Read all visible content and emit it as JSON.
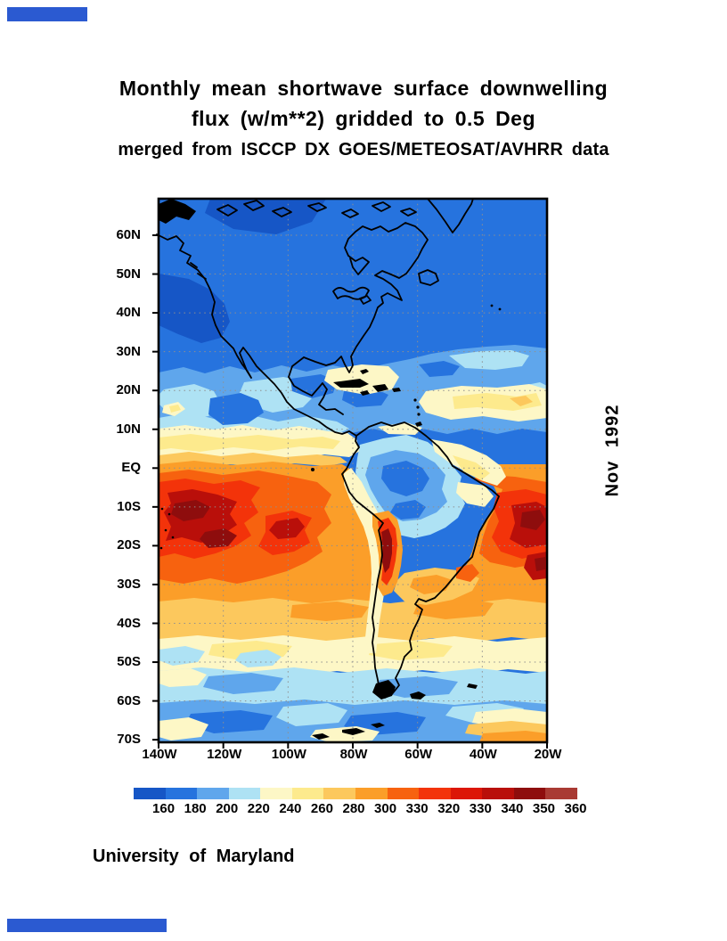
{
  "title": {
    "line1": "Monthly mean shortwave surface downwelling",
    "line2": "flux (w/m**2) gridded to 0.5 Deg",
    "line3": "merged from ISCCP DX GOES/METEOSAT/AVHRR data"
  },
  "side_label": "Nov 1992",
  "credit": "University of Maryland",
  "decor": {
    "bar_color": "#2b5ad1"
  },
  "map": {
    "lat_ticks": [
      "60N",
      "50N",
      "40N",
      "30N",
      "20N",
      "10N",
      "EQ",
      "10S",
      "20S",
      "30S",
      "40S",
      "50S",
      "60S",
      "70S"
    ],
    "lon_ticks": [
      "140W",
      "120W",
      "100W",
      "80W",
      "60W",
      "40W",
      "20W"
    ],
    "grid_color": "#8f8f8f",
    "coast_color": "#000000"
  },
  "colorbar": {
    "labels": [
      "160",
      "180",
      "200",
      "220",
      "240",
      "260",
      "280",
      "300",
      "330",
      "320",
      "330",
      "340",
      "350",
      "360"
    ],
    "colors": [
      "#1656c6",
      "#2673de",
      "#5fa6ec",
      "#aee2f4",
      "#fdf7c6",
      "#fdea8d",
      "#fcc85d",
      "#fb9e29",
      "#f7620f",
      "#f3330a",
      "#dc1607",
      "#b90f0a",
      "#8e0d0d",
      "#a93a33"
    ]
  },
  "chart_data": {
    "type": "heatmap",
    "title": "Monthly mean shortwave surface downwelling flux (w/m**2) gridded to 0.5 Deg",
    "subtitle": "merged from ISCCP DX GOES/METEOSAT/AVHRR data",
    "date": "Nov 1992",
    "units": "w/m**2",
    "projection": "lat-lon grid, Americas / eastern Pacific / western Atlantic",
    "x_axis": {
      "label": "longitude",
      "tick_labels": [
        "140W",
        "120W",
        "100W",
        "80W",
        "60W",
        "40W",
        "20W"
      ],
      "range": [
        "140W",
        "20W"
      ]
    },
    "y_axis": {
      "label": "latitude",
      "tick_labels": [
        "60N",
        "50N",
        "40N",
        "30N",
        "20N",
        "10N",
        "EQ",
        "10S",
        "20S",
        "30S",
        "40S",
        "50S",
        "60S",
        "70S"
      ],
      "range": [
        "~70N",
        "70S"
      ]
    },
    "color_scale": {
      "boundary_labels_as_printed": [
        "160",
        "180",
        "200",
        "220",
        "240",
        "260",
        "280",
        "300",
        "330",
        "320",
        "330",
        "340",
        "350",
        "360"
      ],
      "colors": [
        "#1656c6",
        "#2673de",
        "#5fa6ec",
        "#aee2f4",
        "#fdf7c6",
        "#fdea8d",
        "#fcc85d",
        "#fb9e29",
        "#f7620f",
        "#f3330a",
        "#dc1607",
        "#b90f0a",
        "#8e0d0d",
        "#a93a33"
      ]
    },
    "grid": "dotted graticule every 10 deg latitude and 20 deg longitude",
    "features": [
      "flux < 200 (blues) over North America / North Atlantic / North Pacific north of ~20N",
      "light blue / pale band ~10N-20N with cream patches in Caribbean and central Atlantic",
      "narrow cream-yellow ITCZ band near 5N across eastern Pacific",
      "maximum flux 300-360 (orange-dark red) in subtropical South Pacific ~5S-25S, 140W-95W",
      "secondary maximum in South Atlantic ~10S-25S near 20W-35W",
      "dark red spot (~340-360) along Andes ~15S-28S near 70W",
      "Amazon basin relatively low (~180-220, blues)",
      "amber/cream band 30S-45S, light blues south of 50S",
      "cream/orange wedge near 60S-70S at lower right"
    ]
  }
}
